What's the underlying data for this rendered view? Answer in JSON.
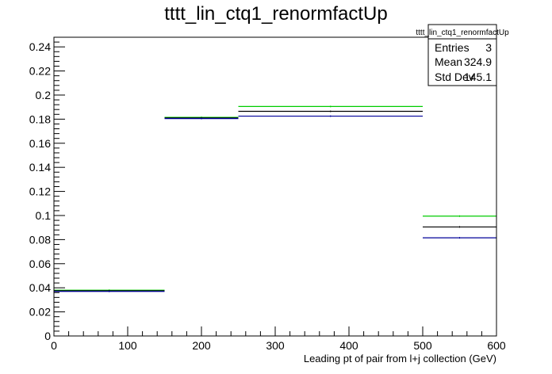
{
  "chart_data": {
    "type": "step",
    "title": "tttt_lin_ctq1_renormfactUp",
    "xlabel": "Leading pt of pair from l+j collection (GeV)",
    "ylabel": "",
    "xlim": [
      0,
      600
    ],
    "ylim": [
      0,
      0.248
    ],
    "x_ticks": [
      "0",
      "100",
      "200",
      "300",
      "400",
      "500",
      "600"
    ],
    "y_ticks": [
      "0",
      "0.02",
      "0.04",
      "0.06",
      "0.08",
      "0.1",
      "0.12",
      "0.14",
      "0.16",
      "0.18",
      "0.2",
      "0.22",
      "0.24"
    ],
    "bin_edges": [
      0,
      150,
      250,
      500,
      600
    ],
    "grid": false,
    "series": [
      {
        "color": "#00cc00",
        "values": [
          0.038,
          0.1815,
          0.1905,
          0.0995
        ]
      },
      {
        "color": "#000000",
        "values": [
          0.0375,
          0.181,
          0.1865,
          0.0905
        ]
      },
      {
        "color": "#000099",
        "values": [
          0.037,
          0.1805,
          0.1825,
          0.0815
        ]
      }
    ],
    "stats_box": {
      "title": "tttt_lin_ctq1_renormfactUp",
      "rows": [
        {
          "label": "Entries",
          "value": "3"
        },
        {
          "label": "Mean",
          "value": "324.9"
        },
        {
          "label": "Std Dev",
          "value": "145.1"
        }
      ]
    }
  }
}
